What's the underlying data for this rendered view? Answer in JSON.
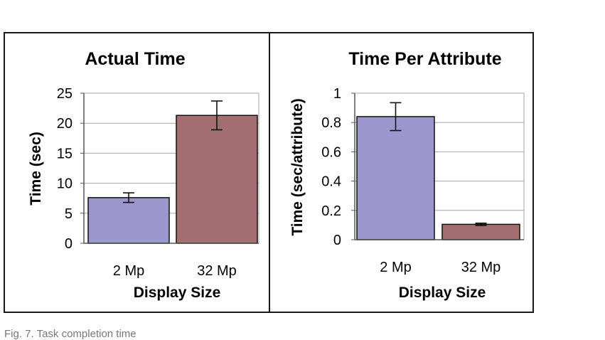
{
  "caption": "Fig. 7. Task completion time",
  "colors": {
    "series_2mp": "#9b97cc",
    "series_32mp": "#a46f72",
    "gridline": "#a6a6a6",
    "axis": "#555555",
    "bar_outline": "#111111"
  },
  "chart_data": [
    {
      "type": "bar",
      "title": "Actual Time",
      "xlabel": "Display Size",
      "ylabel": "Time (sec)",
      "categories": [
        "2 Mp",
        "32 Mp"
      ],
      "values": [
        7.6,
        21.3
      ],
      "error": [
        0.8,
        2.4
      ],
      "ylim": [
        0,
        25
      ],
      "yticks": [
        0,
        5,
        10,
        15,
        20,
        25
      ],
      "ytick_labels": [
        "0",
        "5",
        "10",
        "15",
        "20",
        "25"
      ],
      "grid": true,
      "legend": "none"
    },
    {
      "type": "bar",
      "title": "Time Per Attribute",
      "xlabel": "Display Size",
      "ylabel": "Time (sec/attribute)",
      "categories": [
        "2 Mp",
        "32 Mp"
      ],
      "values": [
        0.84,
        0.105
      ],
      "error": [
        0.095,
        0.008
      ],
      "ylim": [
        0,
        1
      ],
      "yticks": [
        0,
        0.2,
        0.4,
        0.6,
        0.8,
        1
      ],
      "ytick_labels": [
        "0",
        "0.2",
        "0.4",
        "0.6",
        "0.8",
        "1"
      ],
      "grid": true,
      "legend": "none"
    }
  ]
}
